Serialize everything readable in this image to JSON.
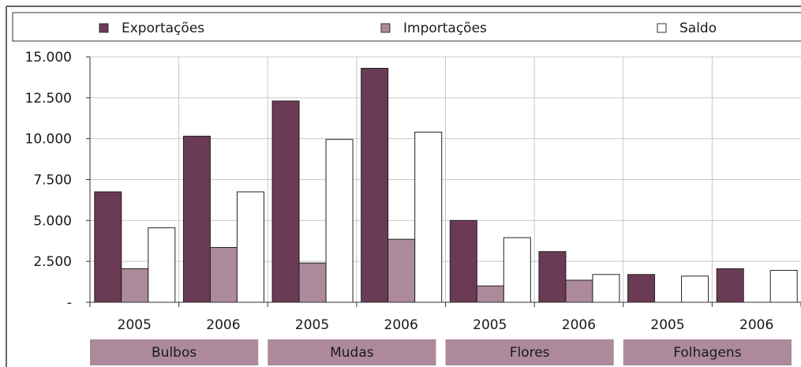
{
  "colors": {
    "exportacoes": "#6b3a55",
    "importacoes": "#ad8a9b",
    "saldo": "#ffffff",
    "group_band": "#ad8a9b",
    "grid": "#c8c8c8",
    "axis": "#333333"
  },
  "legend": {
    "items": [
      {
        "label": "Exportações",
        "color": "#6b3a55"
      },
      {
        "label": "Importações",
        "color": "#ad8a9b"
      },
      {
        "label": "Saldo",
        "color": "#ffffff"
      }
    ]
  },
  "chart_data": {
    "type": "bar",
    "title": "",
    "xlabel": "",
    "ylabel": "",
    "ylim": [
      0,
      15000
    ],
    "y_ticks": [
      0,
      2500,
      5000,
      7500,
      10000,
      12500,
      15000
    ],
    "y_tick_labels": [
      "-",
      "2.500",
      "5.000",
      "7.500",
      "10.000",
      "12.500",
      "15.000"
    ],
    "grid": true,
    "legend_position": "top",
    "categories": [
      "2005",
      "2006",
      "2005",
      "2006",
      "2005",
      "2006",
      "2005",
      "2006"
    ],
    "groups": [
      "Bulbos",
      "Mudas",
      "Flores",
      "Folhagens"
    ],
    "series": [
      {
        "name": "Exportações",
        "values": [
          6750,
          10150,
          12300,
          14300,
          5000,
          3100,
          1700,
          2050
        ]
      },
      {
        "name": "Importações",
        "values": [
          2050,
          3350,
          2400,
          3850,
          1000,
          1350,
          0,
          0
        ]
      },
      {
        "name": "Saldo",
        "values": [
          4550,
          6750,
          9950,
          10400,
          3950,
          1700,
          1600,
          1950
        ]
      }
    ]
  }
}
